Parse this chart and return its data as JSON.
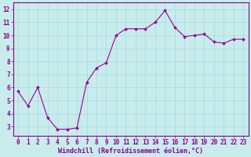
{
  "x": [
    0,
    1,
    2,
    3,
    4,
    5,
    6,
    7,
    8,
    9,
    10,
    11,
    12,
    13,
    14,
    15,
    16,
    17,
    18,
    19,
    20,
    21,
    22,
    23
  ],
  "y": [
    5.7,
    4.6,
    6.0,
    3.7,
    2.8,
    2.8,
    2.9,
    6.4,
    7.5,
    7.9,
    10.0,
    10.5,
    10.5,
    10.5,
    11.0,
    11.9,
    10.6,
    9.9,
    10.0,
    10.1,
    9.5,
    9.4,
    9.7,
    9.7
  ],
  "line_color": "#990099",
  "marker": "D",
  "marker_size": 2.0,
  "bg_color": "#c8ecec",
  "grid_color": "#aadddd",
  "xlabel": "Windchill (Refroidissement éolien,°C)",
  "xlabel_color": "#880088",
  "xlim": [
    -0.5,
    23.5
  ],
  "ylim": [
    2.3,
    12.5
  ],
  "yticks": [
    3,
    4,
    5,
    6,
    7,
    8,
    9,
    10,
    11,
    12
  ],
  "xticks": [
    0,
    1,
    2,
    3,
    4,
    5,
    6,
    7,
    8,
    9,
    10,
    11,
    12,
    13,
    14,
    15,
    16,
    17,
    18,
    19,
    20,
    21,
    22,
    23
  ],
  "tick_color": "#880088",
  "tick_fontsize": 5.5,
  "xlabel_fontsize": 6.0,
  "spine_color": "#880088",
  "linewidth": 0.8
}
